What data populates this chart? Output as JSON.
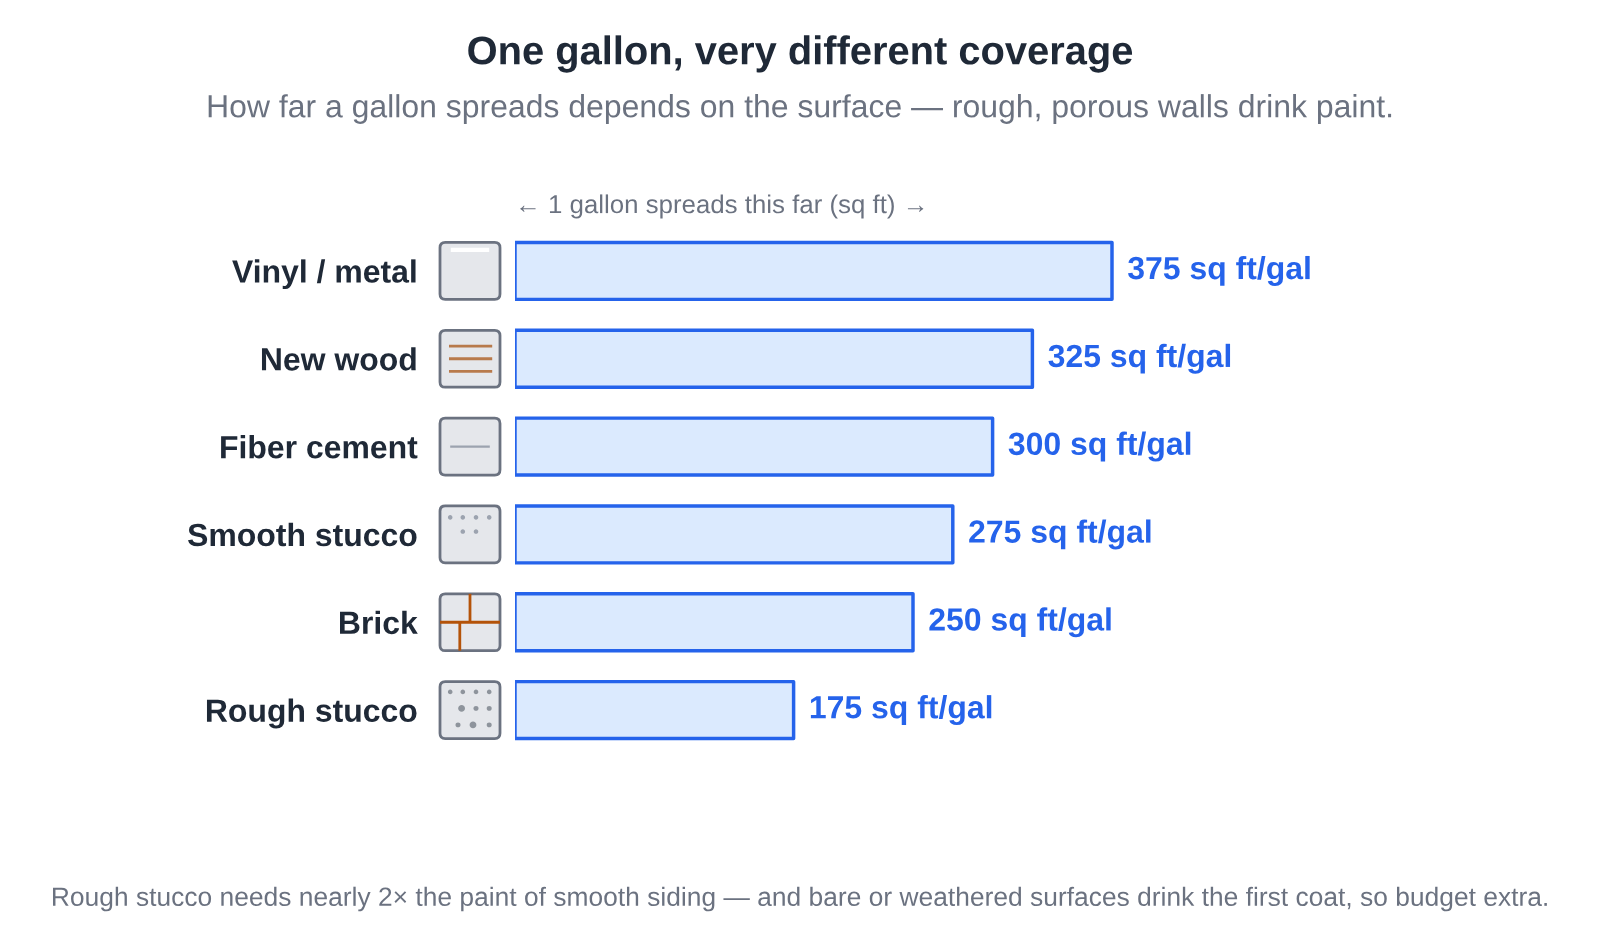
{
  "chart_data": {
    "type": "bar",
    "orientation": "horizontal",
    "title": "One gallon, very different coverage",
    "subtitle": "How far a gallon spreads depends on the surface — rough, porous walls drink paint.",
    "xlabel": "← 1 gallon spreads this far (sq ft) →",
    "categories": [
      "Vinyl / metal",
      "New wood",
      "Fiber cement",
      "Smooth stucco",
      "Brick",
      "Rough stucco"
    ],
    "values": [
      375,
      325,
      300,
      275,
      250,
      175
    ],
    "color": "#dbeafe",
    "value_labels": [
      "375 sq ft/gal",
      "325 sq ft/gal",
      "300 sq ft/gal",
      "275 sq ft/gal",
      "250 sq ft/gal",
      "175 sq ft/gal"
    ],
    "tick_labels": "y",
    "annotations": [
      "Rough stucco needs nearly 2× the paint of smooth siding — and bare or weathered surfaces drink the first coat, so budget extra."
    ]
  }
}
